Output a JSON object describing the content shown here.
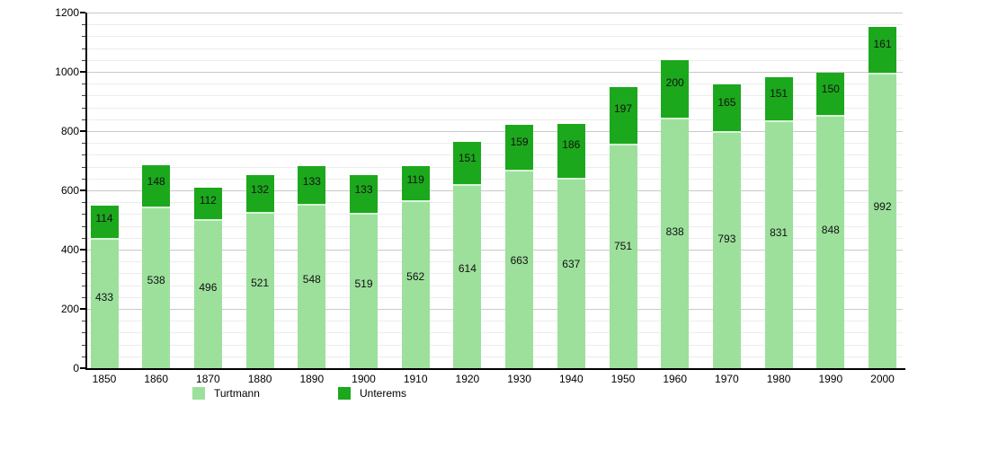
{
  "chart_data": {
    "type": "bar",
    "stacked": true,
    "categories": [
      "1850",
      "1860",
      "1870",
      "1880",
      "1890",
      "1900",
      "1910",
      "1920",
      "1930",
      "1940",
      "1950",
      "1960",
      "1970",
      "1980",
      "1990",
      "2000"
    ],
    "series": [
      {
        "name": "Turtmann",
        "color": "#9CE09C",
        "values": [
          433,
          538,
          496,
          521,
          548,
          519,
          562,
          614,
          663,
          637,
          751,
          838,
          793,
          831,
          848,
          992
        ]
      },
      {
        "name": "Unterems",
        "color": "#1CA81C",
        "values": [
          114,
          148,
          112,
          132,
          133,
          133,
          119,
          151,
          159,
          186,
          197,
          200,
          165,
          151,
          150,
          161
        ]
      }
    ],
    "ylim": [
      0,
      1200
    ],
    "y_major_step": 200,
    "y_minor_step": 40,
    "y_tick_labels": [
      "0",
      "200",
      "400",
      "600",
      "800",
      "1000",
      "1200"
    ],
    "grid": true,
    "value_labels_shown": true,
    "legend_position": "bottom"
  },
  "colors": {
    "axis": "#000000",
    "major_grid": "#c9c9c9",
    "minor_grid": "#ececec",
    "value_label": "#111111",
    "segment_separator": "#d8f6d8"
  }
}
